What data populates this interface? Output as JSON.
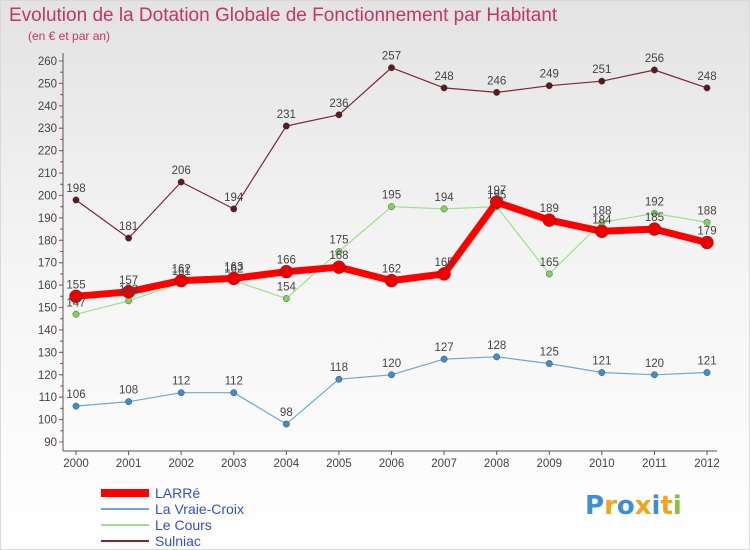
{
  "chart_data": {
    "type": "line",
    "title": "Evolution de la Dotation Globale de Fonctionnement par Habitant",
    "subtitle": "(en € et par an)",
    "xlabel": "",
    "ylabel": "",
    "ylim": [
      90,
      260
    ],
    "ytick_step": 10,
    "x": [
      2000,
      2001,
      2002,
      2003,
      2004,
      2005,
      2006,
      2007,
      2008,
      2009,
      2010,
      2011,
      2012
    ],
    "grid": false,
    "legend_position": "bottom-left",
    "series": [
      {
        "name": "LARRé",
        "color": "#ff0000",
        "marker_color": "#ee0000",
        "values": [
          155,
          157,
          162,
          163,
          166,
          168,
          162,
          165,
          197,
          189,
          184,
          185,
          179
        ]
      },
      {
        "name": "La Vraie-Croix",
        "color": "#6fa8d6",
        "marker_color": "#3f8ccf",
        "values": [
          106,
          108,
          112,
          112,
          98,
          118,
          120,
          127,
          128,
          125,
          121,
          120,
          121
        ]
      },
      {
        "name": "Le Cours",
        "color": "#9fe08f",
        "marker_color": "#7ed35e",
        "values": [
          147,
          153,
          161,
          162,
          154,
          175,
          195,
          194,
          195,
          165,
          188,
          192,
          188
        ]
      },
      {
        "name": "Sulniac",
        "color": "#7a2a33",
        "marker_color": "#5e1a22",
        "values": [
          198,
          181,
          206,
          194,
          231,
          236,
          257,
          248,
          246,
          249,
          251,
          256,
          248
        ]
      }
    ]
  },
  "logo": {
    "letters": [
      "P",
      "r",
      "o",
      "x",
      "i",
      "t",
      "i"
    ],
    "colors": [
      "#3c8fd6",
      "#f2a51c",
      "#3c8fd6",
      "#f2a51c",
      "#3c8fd6",
      "#f2a51c",
      "#7fc341"
    ]
  }
}
